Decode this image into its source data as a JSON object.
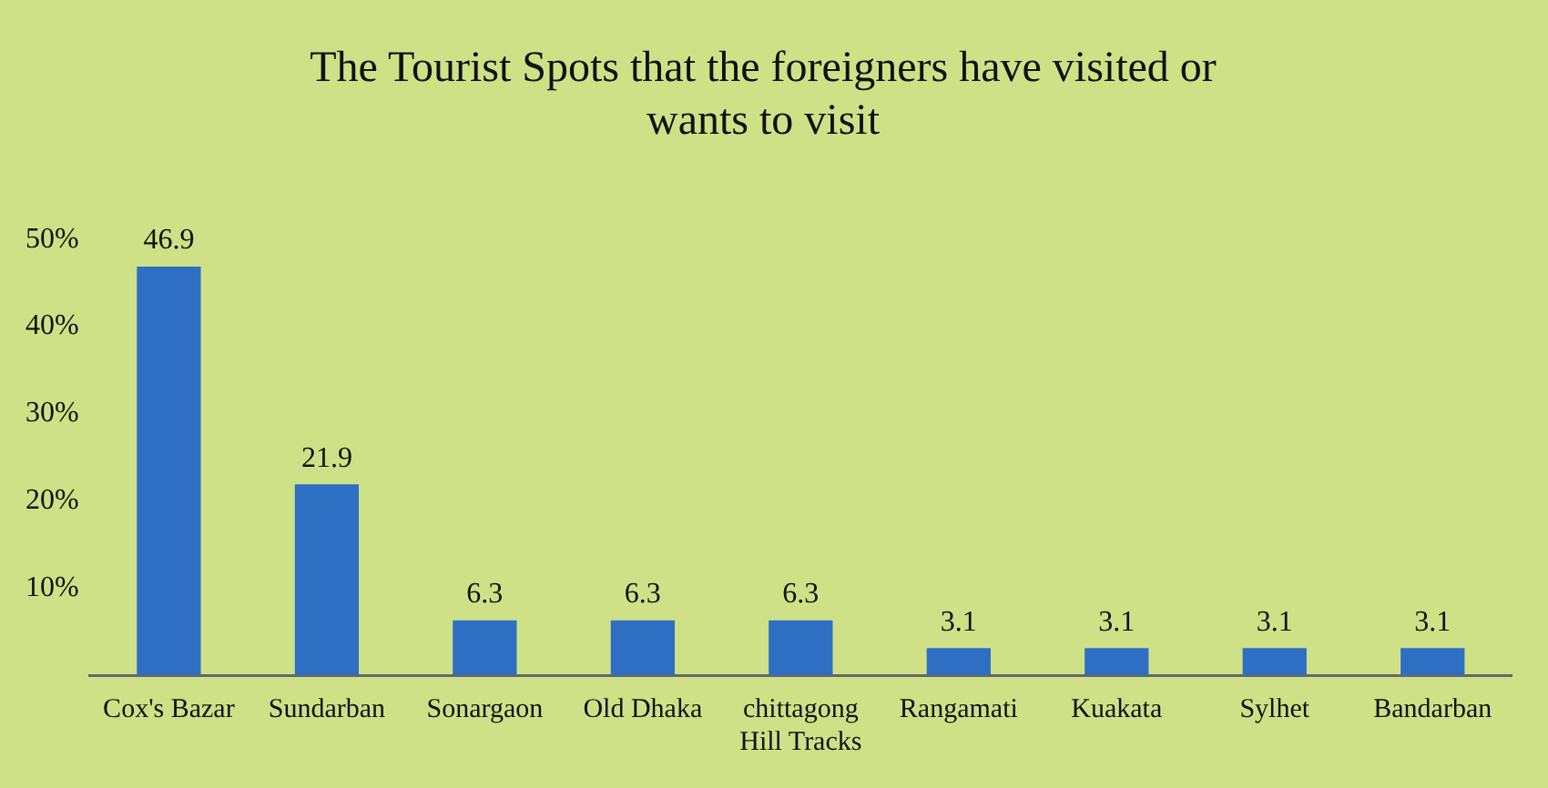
{
  "chart_data": {
    "type": "bar",
    "title": "The Tourist Spots that the foreigners have visited or wants to visit",
    "categories": [
      "Cox's Bazar",
      "Sundarban",
      "Sonargaon",
      "Old Dhaka",
      "chittagong Hill Tracks",
      "Rangamati",
      "Kuakata",
      "Sylhet",
      "Bandarban"
    ],
    "values": [
      46.9,
      21.9,
      6.3,
      6.3,
      6.3,
      3.1,
      3.1,
      3.1,
      3.1
    ],
    "color": "#2e6fc4",
    "ylim": [
      0,
      50
    ],
    "yticks": [
      {
        "value": 10,
        "label": "10%"
      },
      {
        "value": 20,
        "label": "20%"
      },
      {
        "value": 30,
        "label": "30%"
      },
      {
        "value": 40,
        "label": "40%"
      },
      {
        "value": 50,
        "label": "50%"
      }
    ],
    "data_labels": true,
    "grid": false,
    "legend": false
  }
}
